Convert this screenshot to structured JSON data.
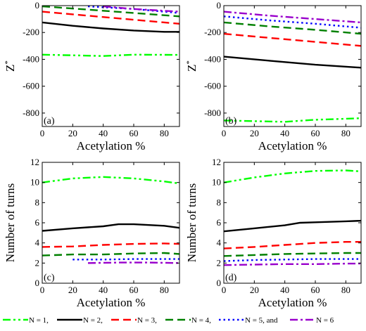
{
  "chart_data": [
    {
      "type": "line",
      "panel_label": "(a)",
      "xlabel": "Acetylation %",
      "ylabel": "Z",
      "ylabel_sup": "*",
      "xlim": [
        0,
        90
      ],
      "ylim": [
        -900,
        0
      ],
      "xticks": [
        0,
        20,
        40,
        60,
        80
      ],
      "yticks": [
        -800,
        -600,
        -400,
        -200,
        0
      ],
      "series": [
        {
          "name": "N = 1",
          "color": "#00ff00",
          "dash": "dashdotdot",
          "x": [
            0,
            20,
            40,
            60,
            90
          ],
          "y": [
            -365,
            -370,
            -375,
            -365,
            -367
          ]
        },
        {
          "name": "N = 2",
          "color": "#000000",
          "dash": "solid",
          "x": [
            0,
            20,
            40,
            60,
            80,
            90
          ],
          "y": [
            -125,
            -150,
            -170,
            -185,
            -195,
            -195
          ]
        },
        {
          "name": "N = 3",
          "color": "#ff0000",
          "dash": "dash",
          "x": [
            0,
            30,
            60,
            90
          ],
          "y": [
            -45,
            -75,
            -105,
            -135
          ]
        },
        {
          "name": "N = 4",
          "color": "#008000",
          "dash": "dash",
          "x": [
            0,
            30,
            60,
            90
          ],
          "y": [
            -5,
            -30,
            -55,
            -80
          ]
        },
        {
          "name": "N = 5",
          "color": "#0000ff",
          "dash": "dot",
          "x": [
            30,
            60,
            90
          ],
          "y": [
            -5,
            -25,
            -55
          ]
        },
        {
          "name": "N = 6",
          "color": "#9900cc",
          "dash": "dashdot",
          "x": [
            40,
            60,
            90
          ],
          "y": [
            -5,
            -25,
            -45
          ]
        }
      ]
    },
    {
      "type": "line",
      "panel_label": "(b)",
      "xlabel": "Acetylation %",
      "ylabel": "Z",
      "ylabel_sup": "*",
      "xlim": [
        0,
        90
      ],
      "ylim": [
        -900,
        0
      ],
      "xticks": [
        0,
        20,
        40,
        60,
        80
      ],
      "yticks": [
        -800,
        -600,
        -400,
        -200,
        0
      ],
      "series": [
        {
          "name": "N = 1",
          "color": "#00ff00",
          "dash": "dashdotdot",
          "x": [
            0,
            20,
            40,
            60,
            90
          ],
          "y": [
            -855,
            -860,
            -865,
            -850,
            -838
          ]
        },
        {
          "name": "N = 2",
          "color": "#000000",
          "dash": "solid",
          "x": [
            0,
            30,
            60,
            90
          ],
          "y": [
            -380,
            -410,
            -440,
            -462
          ]
        },
        {
          "name": "N = 3",
          "color": "#ff0000",
          "dash": "dash",
          "x": [
            0,
            30,
            60,
            90
          ],
          "y": [
            -210,
            -240,
            -270,
            -300
          ]
        },
        {
          "name": "N = 4",
          "color": "#008000",
          "dash": "dash",
          "x": [
            0,
            30,
            60,
            90
          ],
          "y": [
            -125,
            -155,
            -180,
            -210
          ]
        },
        {
          "name": "N = 5",
          "color": "#0000ff",
          "dash": "dot",
          "x": [
            0,
            30,
            60,
            90
          ],
          "y": [
            -80,
            -110,
            -135,
            -165
          ]
        },
        {
          "name": "N = 6",
          "color": "#9900cc",
          "dash": "dashdot",
          "x": [
            0,
            30,
            60,
            90
          ],
          "y": [
            -45,
            -75,
            -100,
            -125
          ]
        }
      ]
    },
    {
      "type": "line",
      "panel_label": "(c)",
      "xlabel": "Acetylation %",
      "ylabel": "Number of turns",
      "xlim": [
        0,
        90
      ],
      "ylim": [
        0,
        12
      ],
      "xticks": [
        0,
        20,
        40,
        60,
        80
      ],
      "yticks": [
        0,
        2,
        4,
        6,
        8,
        10,
        12
      ],
      "series": [
        {
          "name": "N = 1",
          "color": "#00ff00",
          "dash": "dashdotdot",
          "x": [
            0,
            20,
            40,
            60,
            80,
            90
          ],
          "y": [
            10.0,
            10.4,
            10.55,
            10.4,
            10.1,
            9.9
          ]
        },
        {
          "name": "N = 2",
          "color": "#000000",
          "dash": "solid",
          "x": [
            0,
            20,
            40,
            50,
            60,
            80,
            90
          ],
          "y": [
            5.2,
            5.45,
            5.65,
            5.85,
            5.85,
            5.7,
            5.5
          ]
        },
        {
          "name": "N = 3",
          "color": "#ff0000",
          "dash": "dash",
          "x": [
            0,
            20,
            40,
            60,
            80,
            90
          ],
          "y": [
            3.6,
            3.65,
            3.8,
            3.9,
            3.95,
            3.9
          ]
        },
        {
          "name": "N = 4",
          "color": "#008000",
          "dash": "dash",
          "x": [
            0,
            20,
            40,
            60,
            80,
            90
          ],
          "y": [
            2.75,
            2.85,
            2.85,
            2.95,
            3.0,
            2.9
          ]
        },
        {
          "name": "N = 5",
          "color": "#0000ff",
          "dash": "dot",
          "x": [
            20,
            40,
            60,
            80,
            90
          ],
          "y": [
            2.35,
            2.35,
            2.4,
            2.4,
            2.4
          ]
        },
        {
          "name": "N = 6",
          "color": "#9900cc",
          "dash": "dashdot",
          "x": [
            30,
            50,
            70,
            90
          ],
          "y": [
            2.0,
            2.05,
            2.05,
            2.0
          ]
        }
      ]
    },
    {
      "type": "line",
      "panel_label": "(d)",
      "xlabel": "Acetylation %",
      "ylabel": "Number of turns",
      "xlim": [
        0,
        90
      ],
      "ylim": [
        0,
        12
      ],
      "xticks": [
        0,
        20,
        40,
        60,
        80
      ],
      "yticks": [
        0,
        2,
        4,
        6,
        8,
        10,
        12
      ],
      "series": [
        {
          "name": "N = 1",
          "color": "#00ff00",
          "dash": "dashdotdot",
          "x": [
            0,
            20,
            40,
            60,
            80,
            90
          ],
          "y": [
            10.0,
            10.5,
            10.9,
            11.15,
            11.2,
            11.1
          ]
        },
        {
          "name": "N = 2",
          "color": "#000000",
          "dash": "solid",
          "x": [
            0,
            20,
            40,
            50,
            60,
            80,
            90
          ],
          "y": [
            5.15,
            5.45,
            5.75,
            6.0,
            6.05,
            6.15,
            6.2
          ]
        },
        {
          "name": "N = 3",
          "color": "#ff0000",
          "dash": "dash",
          "x": [
            0,
            20,
            40,
            60,
            80,
            90
          ],
          "y": [
            3.45,
            3.6,
            3.8,
            4.0,
            4.1,
            4.1
          ]
        },
        {
          "name": "N = 4",
          "color": "#008000",
          "dash": "dash",
          "x": [
            0,
            20,
            40,
            60,
            80,
            90
          ],
          "y": [
            2.7,
            2.8,
            2.9,
            2.95,
            3.0,
            3.0
          ]
        },
        {
          "name": "N = 5",
          "color": "#0000ff",
          "dash": "dot",
          "x": [
            0,
            20,
            40,
            60,
            80,
            90
          ],
          "y": [
            2.2,
            2.3,
            2.35,
            2.4,
            2.4,
            2.4
          ]
        },
        {
          "name": "N = 6",
          "color": "#9900cc",
          "dash": "dashdot",
          "x": [
            0,
            20,
            40,
            60,
            80,
            90
          ],
          "y": [
            1.8,
            1.85,
            1.9,
            1.9,
            1.95,
            1.95
          ]
        }
      ]
    }
  ],
  "legend": {
    "items": [
      {
        "label": "N = 1,",
        "color": "#00ff00",
        "dash": "dashdotdot"
      },
      {
        "label": "N = 2,",
        "color": "#000000",
        "dash": "solid"
      },
      {
        "label": "N = 3,",
        "color": "#ff0000",
        "dash": "dash"
      },
      {
        "label": "N = 4,",
        "color": "#008000",
        "dash": "dash"
      },
      {
        "label": "N = 5, and",
        "color": "#0000ff",
        "dash": "dot"
      },
      {
        "label": "N = 6",
        "color": "#9900cc",
        "dash": "dashdot"
      }
    ]
  }
}
